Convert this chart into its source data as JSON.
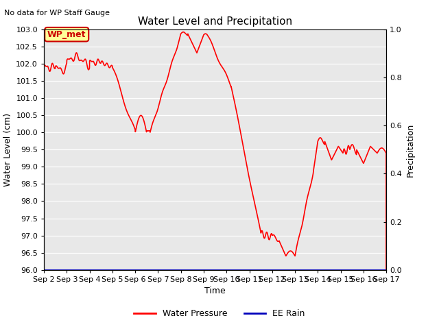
{
  "title": "Water Level and Precipitation",
  "top_left_text": "No data for WP Staff Gauge",
  "ylabel_left": "Water Level (cm)",
  "ylabel_right": "Precipitation",
  "xlabel": "Time",
  "ylim_left": [
    96.0,
    103.0
  ],
  "ylim_right": [
    0.0,
    1.0
  ],
  "bg_color": "#e8e8e8",
  "line_color": "#ff0000",
  "rain_color": "#0000bb",
  "legend_label_wp": "Water Pressure",
  "legend_label_rain": "EE Rain",
  "legend_box_label": "WP_met",
  "x_tick_labels": [
    "Sep 2",
    "Sep 3",
    "Sep 4",
    "Sep 5",
    "Sep 6",
    "Sep 7",
    "Sep 8",
    "Sep 9",
    "Sep 10",
    "Sep 11",
    "Sep 12",
    "Sep 13",
    "Sep 14",
    "Sep 15",
    "Sep 16",
    "Sep 17"
  ]
}
